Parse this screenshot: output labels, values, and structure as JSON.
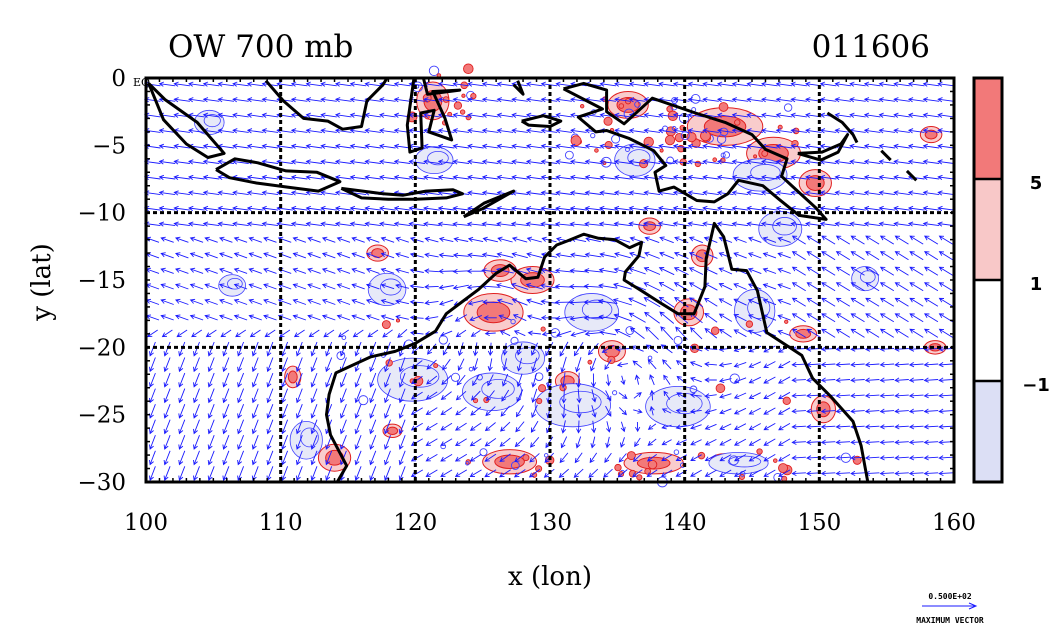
{
  "title_left": "OW 700 mb",
  "title_right": "011606",
  "chart_data": {
    "type": "vector-field contour map",
    "title": "OW 700 mb",
    "date_label": "011606",
    "xlabel": "x (lon)",
    "ylabel": "y (lat)",
    "xlim": [
      100,
      160
    ],
    "ylim": [
      -30,
      0
    ],
    "x_ticks": [
      "100",
      "110",
      "120",
      "130",
      "140",
      "150",
      "160"
    ],
    "y_ticks": [
      "0",
      "−5",
      "−10",
      "−15",
      "−20",
      "−25",
      "−30"
    ],
    "y_zero_suffix": "EQ",
    "grid_lon": [
      110,
      120,
      130,
      140,
      150
    ],
    "grid_lat": [
      -10,
      -20
    ],
    "colorbar": {
      "levels": [
        "5",
        "1",
        "−1"
      ],
      "colors": [
        "#f27979",
        "#f8c8c8",
        "#ffffff",
        "#dcdff5"
      ]
    },
    "vector_legend": {
      "magnitude": "0.500E+02",
      "label": "MAXIMUM VECTOR"
    },
    "colors": {
      "vectors": "#1a1aff",
      "negative_contour": "#4040ff",
      "positive_contour": "#e02020",
      "coast": "#000000"
    }
  }
}
